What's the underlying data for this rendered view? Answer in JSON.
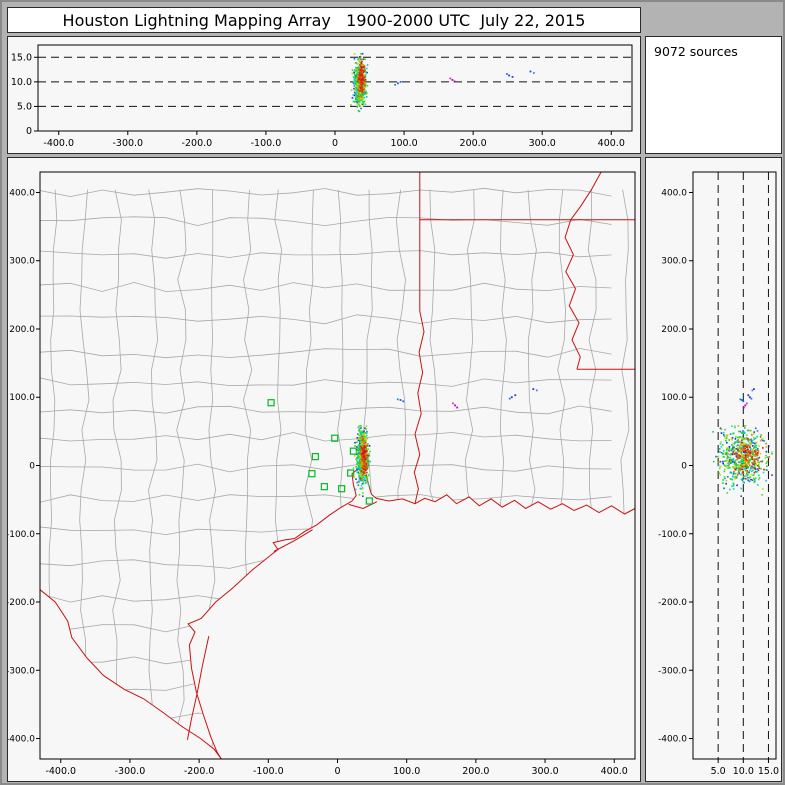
{
  "window": {
    "title": "Houston Lightning Mapping Array   1900-2000 UTC  July 22, 2015"
  },
  "info_panel": {
    "source_count": "9072 sources"
  },
  "palette": {
    "outer_bg": "#b3b3b3",
    "panel_bg": "#f7f7f7",
    "border_red": "#cc1111",
    "county_gray": "#a8a8a8",
    "station_green": "#00bb22",
    "dash_black": "#111111",
    "frame_black": "#000000"
  },
  "chart_data": {
    "type": "scatter",
    "title": "Houston Lightning Mapping Array   1900-2000 UTC  July 22, 2015",
    "source_count": 9072,
    "coordinate_units": "km from network center",
    "x_range": [
      -430,
      430
    ],
    "y_range": [
      -430,
      430
    ],
    "alt_range_ew": [
      0,
      17.5
    ],
    "alt_range_ns": [
      0,
      16.5
    ],
    "distance_ticks": {
      "values": [
        -400,
        -300,
        -200,
        -100,
        0,
        100,
        200,
        300,
        400
      ],
      "labels": [
        "-400.0",
        "-300.0",
        "-200.0",
        "-100.0",
        "0",
        "100.0",
        "200.0",
        "300.0",
        "400.0"
      ]
    },
    "altitude_ticks_ew": {
      "values": [
        0,
        5,
        10,
        15
      ],
      "labels": [
        "0",
        "5.0",
        "10.0",
        "15.0"
      ]
    },
    "altitude_ticks_ns": {
      "values": [
        5,
        10,
        15
      ],
      "labels": [
        "5.0",
        "10.0",
        "15.0"
      ]
    },
    "dashed_altitude_lines": [
      5,
      10,
      15
    ],
    "main_cluster": {
      "n": 680,
      "cx": 36,
      "sx": 4.2,
      "cy": 12,
      "sy": 21,
      "y_min": -45,
      "y_max": 58,
      "alt_mean": 9.8,
      "alt_sd": 2.4,
      "alt_min": 1.8,
      "alt_max": 15.7,
      "core": {
        "t_threshold": 0.75,
        "cx": 38,
        "sx": 2.4,
        "cy": 14,
        "sy": 13,
        "alt_mean": 10.6,
        "alt_sd": 1.5
      }
    },
    "outlier_points": [
      {
        "x": 170,
        "y": 88,
        "alt": 10.4,
        "color": "#b400b4"
      },
      {
        "x": 173,
        "y": 85,
        "alt": 10.1,
        "color": "#b400b4"
      },
      {
        "x": 167,
        "y": 91,
        "alt": 10.7,
        "color": "#c838c8"
      },
      {
        "x": 91,
        "y": 96,
        "alt": 9.7,
        "color": "#2848dc"
      },
      {
        "x": 95,
        "y": 94,
        "alt": 10.0,
        "color": "#1e64e6"
      },
      {
        "x": 87,
        "y": 97,
        "alt": 9.4,
        "color": "#00a0d2"
      },
      {
        "x": 252,
        "y": 100,
        "alt": 11.3,
        "color": "#2040cc"
      },
      {
        "x": 257,
        "y": 103,
        "alt": 11.0,
        "color": "#2040cc"
      },
      {
        "x": 249,
        "y": 98,
        "alt": 11.6,
        "color": "#3c64f0"
      },
      {
        "x": 283,
        "y": 112,
        "alt": 12.1,
        "color": "#2040cc"
      },
      {
        "x": 288,
        "y": 110,
        "alt": 11.8,
        "color": "#5a78f0"
      }
    ],
    "stations": [
      [
        -96,
        92
      ],
      [
        -4,
        40
      ],
      [
        -32,
        13
      ],
      [
        23,
        21
      ],
      [
        -37,
        -12
      ],
      [
        -19,
        -31
      ],
      [
        6,
        -34
      ],
      [
        19,
        -11
      ],
      [
        46,
        -52
      ],
      [
        40,
        3
      ]
    ],
    "map_geometry": {
      "rio_grande": [
        [
          -430,
          -182
        ],
        [
          -408,
          -200
        ],
        [
          -390,
          -228
        ],
        [
          -384,
          -252
        ],
        [
          -362,
          -282
        ],
        [
          -338,
          -308
        ],
        [
          -308,
          -328
        ],
        [
          -280,
          -342
        ],
        [
          -252,
          -362
        ],
        [
          -224,
          -383
        ],
        [
          -198,
          -400
        ],
        [
          -178,
          -416
        ],
        [
          -168,
          -430
        ]
      ],
      "coastline": [
        [
          -168,
          -430
        ],
        [
          -174,
          -420
        ],
        [
          -183,
          -398
        ],
        [
          -194,
          -365
        ],
        [
          -204,
          -332
        ],
        [
          -211,
          -297
        ],
        [
          -214,
          -263
        ],
        [
          -206,
          -244
        ],
        [
          -216,
          -232
        ],
        [
          -197,
          -224
        ],
        [
          -176,
          -200
        ],
        [
          -151,
          -179
        ],
        [
          -123,
          -153
        ],
        [
          -96,
          -131
        ],
        [
          -86,
          -123
        ],
        [
          -93,
          -113
        ],
        [
          -76,
          -109
        ],
        [
          -62,
          -107
        ],
        [
          -48,
          -97
        ],
        [
          -30,
          -87
        ],
        [
          -12,
          -73
        ],
        [
          4,
          -62
        ],
        [
          21,
          -52
        ],
        [
          27,
          -44
        ],
        [
          23,
          -28
        ],
        [
          21,
          -12
        ],
        [
          31,
          -4
        ],
        [
          41,
          -12
        ],
        [
          45,
          -28
        ],
        [
          49,
          -42
        ],
        [
          56,
          -48
        ],
        [
          74,
          -52
        ],
        [
          94,
          -49
        ],
        [
          112,
          -56
        ],
        [
          126,
          -48
        ],
        [
          141,
          -53
        ],
        [
          158,
          -43
        ],
        [
          172,
          -56
        ],
        [
          190,
          -46
        ],
        [
          205,
          -59
        ],
        [
          222,
          -49
        ],
        [
          238,
          -61
        ],
        [
          256,
          -51
        ],
        [
          272,
          -63
        ],
        [
          290,
          -53
        ],
        [
          308,
          -64
        ],
        [
          325,
          -56
        ],
        [
          342,
          -66
        ],
        [
          360,
          -58
        ],
        [
          378,
          -69
        ],
        [
          396,
          -59
        ],
        [
          415,
          -71
        ],
        [
          430,
          -63
        ]
      ],
      "state_borders": [
        [
          [
            112,
            -56
          ],
          [
            117,
            -34
          ],
          [
            111,
            -10
          ],
          [
            119,
            16
          ],
          [
            112,
            46
          ],
          [
            121,
            76
          ],
          [
            116,
            106
          ],
          [
            123,
            136
          ],
          [
            118,
            166
          ],
          [
            125,
            196
          ],
          [
            119,
            226
          ],
          [
            119,
            250
          ],
          [
            119,
            430
          ]
        ],
        [
          [
            119,
            360
          ],
          [
            430,
            360
          ]
        ],
        [
          [
            381,
            430
          ],
          [
            367,
            404
          ],
          [
            351,
            379
          ],
          [
            337,
            360
          ],
          [
            329,
            334
          ],
          [
            341,
            309
          ],
          [
            330,
            284
          ],
          [
            344,
            259
          ],
          [
            335,
            234
          ],
          [
            349,
            209
          ],
          [
            339,
            184
          ],
          [
            351,
            159
          ],
          [
            346,
            141
          ]
        ],
        [
          [
            346,
            141
          ],
          [
            430,
            141
          ]
        ]
      ],
      "barrier_islands": [
        [
          [
            -186,
            -250
          ],
          [
            -195,
            -292
          ],
          [
            -203,
            -334
          ],
          [
            -211,
            -371
          ],
          [
            -217,
            -402
          ]
        ],
        [
          [
            16,
            -57
          ],
          [
            37,
            -63
          ],
          [
            57,
            -53
          ]
        ],
        [
          [
            -92,
            -126
          ],
          [
            -62,
            -110
          ],
          [
            -36,
            -94
          ]
        ]
      ],
      "county_grid": {
        "seed": 13,
        "spacing_x": 46,
        "spacing_y": 44,
        "jitter": 7
      }
    }
  }
}
